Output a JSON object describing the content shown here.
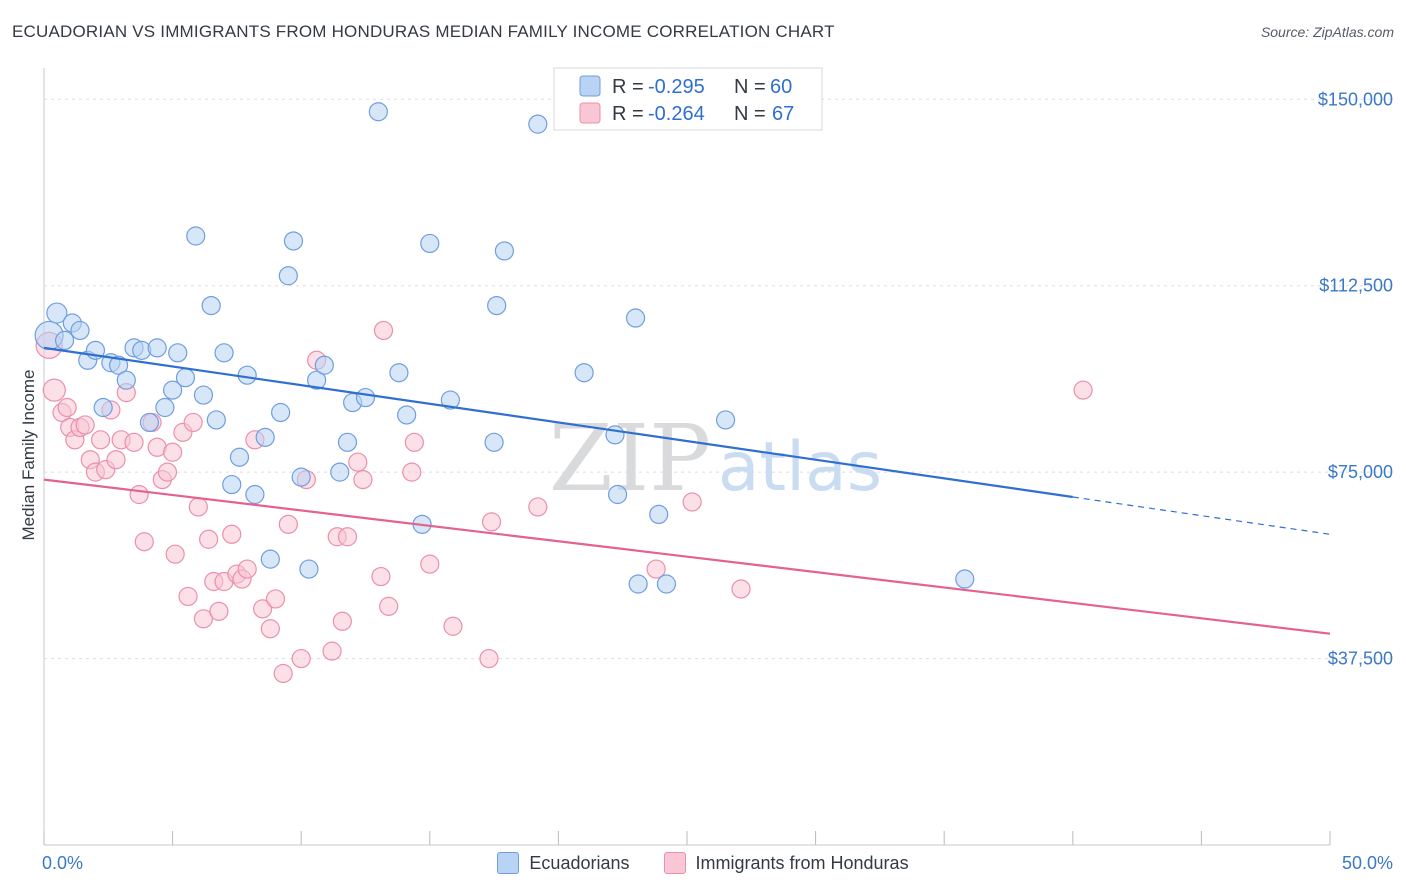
{
  "title": "ECUADORIAN VS IMMIGRANTS FROM HONDURAS MEDIAN FAMILY INCOME CORRELATION CHART",
  "source": "Source: ZipAtlas.com",
  "watermark": {
    "zip": "ZIP",
    "atlas": "atlas"
  },
  "colors": {
    "blue_fill": "#b8d3f3",
    "blue_stroke": "#6f9ee0",
    "blue_line": "#2f6fd0",
    "pink_fill": "#f8c6d5",
    "pink_stroke": "#ec8fac",
    "pink_line": "#e46290",
    "axis_text": "#3a78c9",
    "grid": "#dcdde0"
  },
  "legend": {
    "rows": [
      {
        "r_label": "R =",
        "r_value": "-0.295",
        "n_label": "N =",
        "n_value": "60"
      },
      {
        "r_label": "R =",
        "r_value": "-0.264",
        "n_label": "N =",
        "n_value": "67"
      }
    ]
  },
  "bottom_legend": {
    "series1": "Ecuadorians",
    "series2": "Immigrants from Honduras"
  },
  "chart_data": {
    "type": "scatter",
    "title": "ECUADORIAN VS IMMIGRANTS FROM HONDURAS MEDIAN FAMILY INCOME CORRELATION CHART",
    "xlabel": "",
    "ylabel": "Median Family Income",
    "xlim": [
      0,
      50
    ],
    "ylim": [
      0,
      157500
    ],
    "x_tick_labels": [
      "0.0%",
      "50.0%"
    ],
    "y_ticks": [
      37500,
      75000,
      112500,
      150000
    ],
    "y_tick_labels": [
      "$37,500",
      "$75,000",
      "$112,500",
      "$150,000"
    ],
    "grid": true,
    "series": [
      {
        "name": "Ecuadorians",
        "R": -0.295,
        "N": 60,
        "trend": {
          "x0": 0,
          "y0": 100000,
          "x1": 40,
          "y1": 70000,
          "dash_to_x": 50,
          "dash_to_y": 62500
        },
        "points": [
          [
            0.2,
            102500,
            14
          ],
          [
            0.5,
            107000,
            10
          ],
          [
            0.8,
            101500,
            9
          ],
          [
            1.1,
            105000,
            9
          ],
          [
            1.4,
            103500,
            9
          ],
          [
            1.7,
            97500,
            9
          ],
          [
            2.0,
            99500,
            9
          ],
          [
            2.3,
            88000,
            9
          ],
          [
            2.6,
            97000,
            9
          ],
          [
            2.9,
            96500,
            9
          ],
          [
            3.2,
            93500,
            9
          ],
          [
            3.5,
            100000,
            9
          ],
          [
            3.8,
            99500,
            9
          ],
          [
            4.1,
            85000,
            9
          ],
          [
            4.4,
            100000,
            9
          ],
          [
            4.7,
            88000,
            9
          ],
          [
            5.0,
            91500,
            9
          ],
          [
            5.2,
            99000,
            9
          ],
          [
            5.5,
            94000,
            9
          ],
          [
            5.9,
            122500,
            9
          ],
          [
            6.2,
            90500,
            9
          ],
          [
            6.5,
            108500,
            9
          ],
          [
            6.7,
            85500,
            9
          ],
          [
            7.0,
            99000,
            9
          ],
          [
            7.3,
            72500,
            9
          ],
          [
            7.6,
            78000,
            9
          ],
          [
            7.9,
            94500,
            9
          ],
          [
            8.2,
            70500,
            9
          ],
          [
            8.6,
            82000,
            9
          ],
          [
            8.8,
            57500,
            9
          ],
          [
            9.2,
            87000,
            9
          ],
          [
            9.5,
            114500,
            9
          ],
          [
            9.7,
            121500,
            9
          ],
          [
            10.0,
            74000,
            9
          ],
          [
            10.3,
            55500,
            9
          ],
          [
            10.6,
            93500,
            9
          ],
          [
            10.9,
            96500,
            9
          ],
          [
            11.5,
            75000,
            9
          ],
          [
            11.8,
            81000,
            9
          ],
          [
            12.0,
            89000,
            9
          ],
          [
            12.5,
            90000,
            9
          ],
          [
            13.0,
            147500,
            9
          ],
          [
            13.8,
            95000,
            9
          ],
          [
            14.1,
            86500,
            9
          ],
          [
            14.7,
            64500,
            9
          ],
          [
            15.0,
            121000,
            9
          ],
          [
            15.8,
            89500,
            9
          ],
          [
            17.5,
            81000,
            9
          ],
          [
            17.6,
            108500,
            9
          ],
          [
            17.9,
            119500,
            9
          ],
          [
            19.2,
            145000,
            9
          ],
          [
            21.0,
            95000,
            9
          ],
          [
            22.2,
            82500,
            9
          ],
          [
            22.3,
            70500,
            9
          ],
          [
            23.0,
            106000,
            9
          ],
          [
            23.1,
            52500,
            9
          ],
          [
            23.9,
            66500,
            9
          ],
          [
            24.2,
            52500,
            9
          ],
          [
            26.5,
            85500,
            9
          ],
          [
            35.8,
            53500,
            9
          ]
        ]
      },
      {
        "name": "Immigrants from Honduras",
        "R": -0.264,
        "N": 67,
        "trend": {
          "x0": 0,
          "y0": 73500,
          "x1": 50,
          "y1": 42500
        },
        "points": [
          [
            0.2,
            100500,
            13
          ],
          [
            0.4,
            91500,
            11
          ],
          [
            0.7,
            87000,
            9
          ],
          [
            0.9,
            88000,
            9
          ],
          [
            1.0,
            84000,
            9
          ],
          [
            1.2,
            81500,
            9
          ],
          [
            1.4,
            84000,
            9
          ],
          [
            1.6,
            84500,
            9
          ],
          [
            1.8,
            77500,
            9
          ],
          [
            2.0,
            75000,
            9
          ],
          [
            2.2,
            81500,
            9
          ],
          [
            2.4,
            75500,
            9
          ],
          [
            2.6,
            87500,
            9
          ],
          [
            2.8,
            77500,
            9
          ],
          [
            3.0,
            81500,
            9
          ],
          [
            3.2,
            91000,
            9
          ],
          [
            3.5,
            81000,
            9
          ],
          [
            3.7,
            70500,
            9
          ],
          [
            3.9,
            61000,
            9
          ],
          [
            4.2,
            85000,
            9
          ],
          [
            4.4,
            80000,
            9
          ],
          [
            4.6,
            73500,
            9
          ],
          [
            4.8,
            75000,
            9
          ],
          [
            5.0,
            79000,
            9
          ],
          [
            5.1,
            58500,
            9
          ],
          [
            5.4,
            83000,
            9
          ],
          [
            5.6,
            50000,
            9
          ],
          [
            5.8,
            85000,
            9
          ],
          [
            6.0,
            68000,
            9
          ],
          [
            6.2,
            45500,
            9
          ],
          [
            6.4,
            61500,
            9
          ],
          [
            6.6,
            53000,
            9
          ],
          [
            6.8,
            47000,
            9
          ],
          [
            7.0,
            53000,
            9
          ],
          [
            7.3,
            62500,
            9
          ],
          [
            7.5,
            54500,
            9
          ],
          [
            7.7,
            53500,
            9
          ],
          [
            7.9,
            55500,
            9
          ],
          [
            8.2,
            81500,
            9
          ],
          [
            8.5,
            47500,
            9
          ],
          [
            8.8,
            43500,
            9
          ],
          [
            9.0,
            49500,
            9
          ],
          [
            9.3,
            34500,
            9
          ],
          [
            9.5,
            64500,
            9
          ],
          [
            10.0,
            37500,
            9
          ],
          [
            10.2,
            73500,
            9
          ],
          [
            10.6,
            97500,
            9
          ],
          [
            11.2,
            39000,
            9
          ],
          [
            11.4,
            62000,
            9
          ],
          [
            11.6,
            45000,
            9
          ],
          [
            11.8,
            62000,
            9
          ],
          [
            12.2,
            77000,
            9
          ],
          [
            12.4,
            73500,
            9
          ],
          [
            13.1,
            54000,
            9
          ],
          [
            13.2,
            103500,
            9
          ],
          [
            13.4,
            48000,
            9
          ],
          [
            14.3,
            75000,
            9
          ],
          [
            14.4,
            81000,
            9
          ],
          [
            15.0,
            56500,
            9
          ],
          [
            15.9,
            44000,
            9
          ],
          [
            17.3,
            37500,
            9
          ],
          [
            17.4,
            65000,
            9
          ],
          [
            19.2,
            68000,
            9
          ],
          [
            23.8,
            55500,
            9
          ],
          [
            25.2,
            69000,
            9
          ],
          [
            27.1,
            51500,
            9
          ],
          [
            40.4,
            91500,
            9
          ]
        ]
      }
    ]
  }
}
